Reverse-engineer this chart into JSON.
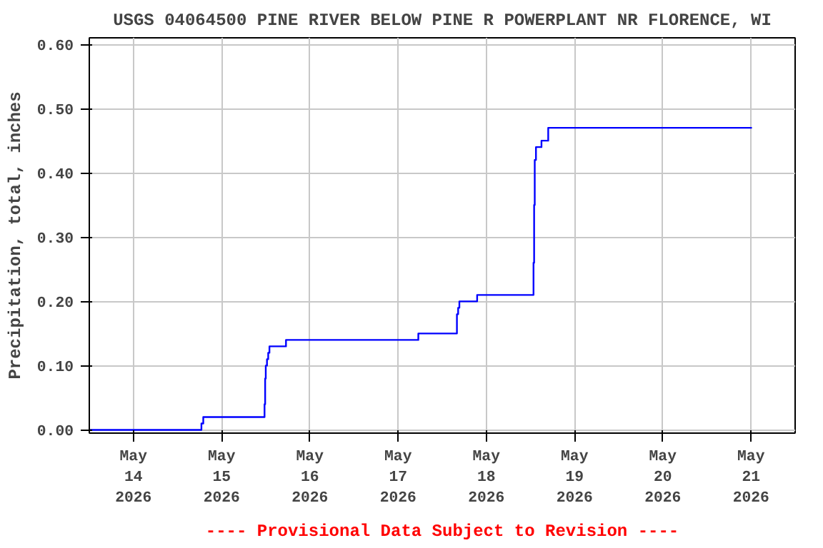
{
  "chart_data": {
    "type": "step",
    "title": "USGS 04064500 PINE RIVER BELOW PINE R POWERPLANT NR FLORENCE, WI",
    "ylabel": "Precipitation, total, inches",
    "x": [
      "2026-05-13T12:00",
      "2026-05-14T18:30",
      "2026-05-14T19:00",
      "2026-05-15T11:40",
      "2026-05-15T11:50",
      "2026-05-15T12:00",
      "2026-05-15T12:20",
      "2026-05-15T12:40",
      "2026-05-15T13:00",
      "2026-05-15T17:30",
      "2026-05-17T05:30",
      "2026-05-17T16:00",
      "2026-05-17T16:20",
      "2026-05-17T16:40",
      "2026-05-17T21:30",
      "2026-05-18T12:50",
      "2026-05-18T13:00",
      "2026-05-18T13:10",
      "2026-05-18T13:30",
      "2026-05-18T15:00",
      "2026-05-18T16:50",
      "2026-05-21T00:15"
    ],
    "series": [
      {
        "color": "#0000ff",
        "values": [
          0.0,
          0.01,
          0.02,
          0.04,
          0.08,
          0.1,
          0.11,
          0.12,
          0.13,
          0.14,
          0.15,
          0.18,
          0.19,
          0.2,
          0.21,
          0.26,
          0.35,
          0.42,
          0.44,
          0.45,
          0.47,
          0.47
        ]
      }
    ],
    "xlim": [
      "2026-05-13T12:00",
      "2026-05-21T12:00"
    ],
    "xticks": [
      {
        "value": "2026-05-14",
        "label": "May\n14\n2026"
      },
      {
        "value": "2026-05-15",
        "label": "May\n15\n2026"
      },
      {
        "value": "2026-05-16",
        "label": "May\n16\n2026"
      },
      {
        "value": "2026-05-17",
        "label": "May\n17\n2026"
      },
      {
        "value": "2026-05-18",
        "label": "May\n18\n2026"
      },
      {
        "value": "2026-05-19",
        "label": "May\n19\n2026"
      },
      {
        "value": "2026-05-20",
        "label": "May\n20\n2026"
      },
      {
        "value": "2026-05-21",
        "label": "May\n21\n2026"
      }
    ],
    "ylim": [
      -0.005,
      0.61
    ],
    "yticks": [
      {
        "value": 0,
        "label": "0.00"
      },
      {
        "value": 0.1,
        "label": "0.10"
      },
      {
        "value": 0.2,
        "label": "0.20"
      },
      {
        "value": 0.3,
        "label": "0.30"
      },
      {
        "value": 0.4,
        "label": "0.40"
      },
      {
        "value": 0.5,
        "label": "0.50"
      },
      {
        "value": 0.6,
        "label": "0.60"
      }
    ],
    "grid": true,
    "annotations": [
      "---- Provisional Data Subject to Revision ----"
    ]
  }
}
